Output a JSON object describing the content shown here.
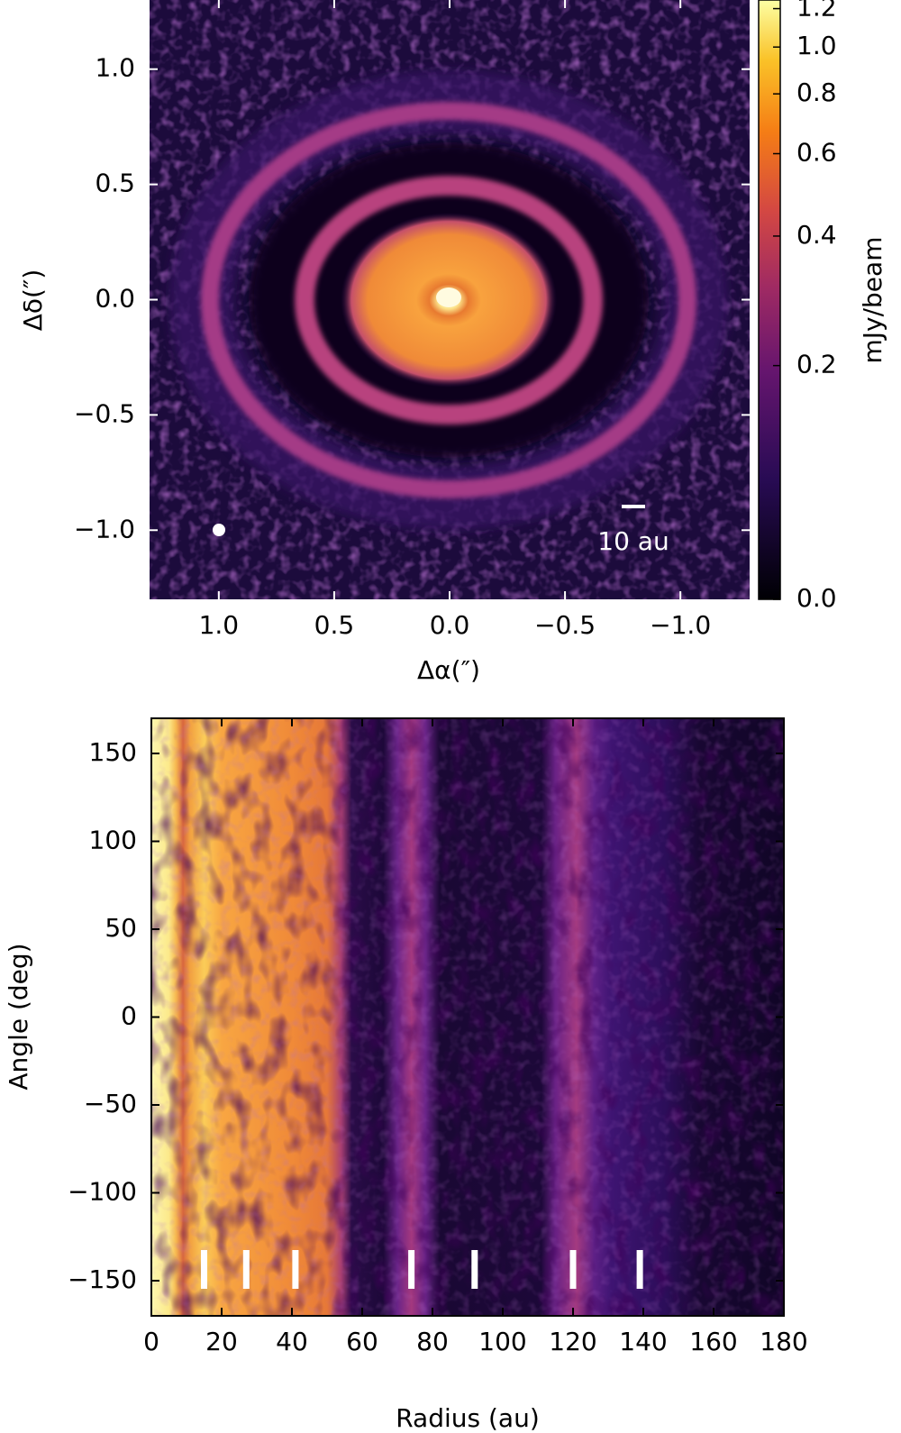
{
  "chart_data": [
    {
      "type": "image",
      "x_label": "Δα(″)",
      "y_label": "Δδ(″)",
      "xlim": [
        1.3,
        -1.3
      ],
      "ylim": [
        -1.3,
        1.3
      ],
      "xticks": [
        {
          "value": 1,
          "label": "1.0"
        },
        {
          "value": 0.5,
          "label": "0.5"
        },
        {
          "value": 0,
          "label": "0.0"
        },
        {
          "value": -0.5,
          "label": "−0.5"
        },
        {
          "value": -1,
          "label": "−1.0"
        }
      ],
      "yticks": [
        {
          "value": 1,
          "label": "1.0"
        },
        {
          "value": 0.5,
          "label": "0.5"
        },
        {
          "value": 0,
          "label": "0.0"
        },
        {
          "value": -0.5,
          "label": "−0.5"
        },
        {
          "value": -1,
          "label": "−1.0"
        }
      ],
      "colorbar": {
        "label": "mJy/beam",
        "lim": [
          0,
          1.25
        ],
        "scale": "asinh",
        "ticks": [
          {
            "value": 0,
            "label": "0.0"
          },
          {
            "value": 0.2,
            "label": "0.2"
          },
          {
            "value": 0.4,
            "label": "0.4"
          },
          {
            "value": 0.6,
            "label": "0.6"
          },
          {
            "value": 0.8,
            "label": "0.8"
          },
          {
            "value": 1,
            "label": "1.0"
          },
          {
            "value": 1.2,
            "label": "1.2"
          }
        ]
      },
      "annotation": "10 au"
    },
    {
      "type": "polar-map",
      "x_label": "Radius (au)",
      "y_label": "Angle (deg)",
      "xlim": [
        0,
        180
      ],
      "ylim": [
        -170,
        170
      ],
      "xticks": [
        0,
        20,
        40,
        60,
        80,
        100,
        120,
        140,
        160,
        180
      ],
      "yticks": [
        150,
        100,
        50,
        0,
        {
          "value": -50,
          "label": "−50"
        },
        {
          "value": -100,
          "label": "−100"
        },
        {
          "value": -150,
          "label": "−150"
        }
      ],
      "markers": [
        15,
        27,
        41,
        74,
        92,
        120,
        139
      ],
      "marker_color": "#ffffff"
    }
  ]
}
